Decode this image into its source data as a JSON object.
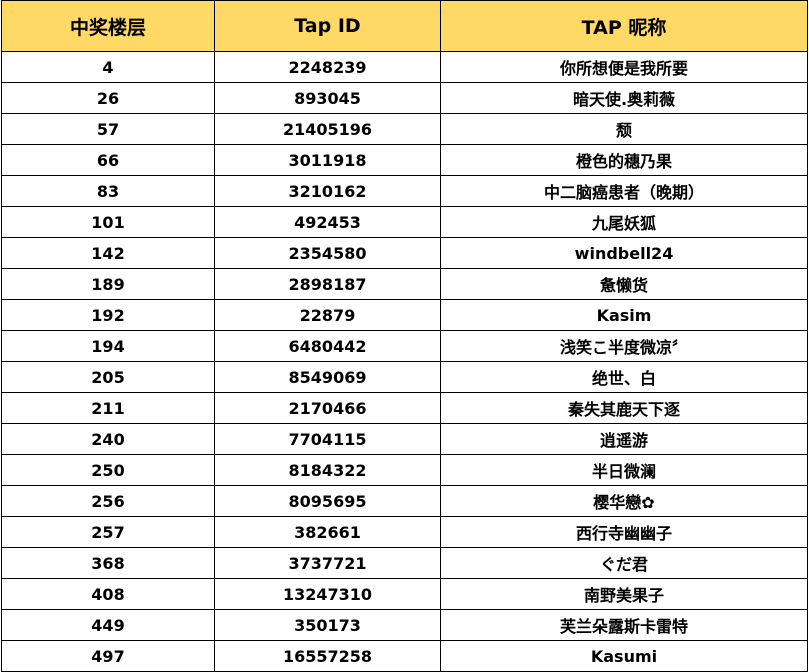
{
  "header": {
    "floor": "中奖楼层",
    "tap_id": "Tap ID",
    "nickname": "TAP 昵称"
  },
  "colors": {
    "header_bg": "#ffd966",
    "border": "#000000"
  },
  "rows": [
    {
      "floor": "4",
      "tap_id": "2248239",
      "nickname": "你所想便是我所要"
    },
    {
      "floor": "26",
      "tap_id": "893045",
      "nickname": "暗天使.奥莉薇"
    },
    {
      "floor": "57",
      "tap_id": "21405196",
      "nickname": "颓"
    },
    {
      "floor": "66",
      "tap_id": "3011918",
      "nickname": "橙色的穗乃果"
    },
    {
      "floor": "83",
      "tap_id": "3210162",
      "nickname": "中二脑癌患者（晚期）"
    },
    {
      "floor": "101",
      "tap_id": "492453",
      "nickname": "九尾妖狐"
    },
    {
      "floor": "142",
      "tap_id": "2354580",
      "nickname": "windbell24"
    },
    {
      "floor": "189",
      "tap_id": "2898187",
      "nickname": "惫懒货"
    },
    {
      "floor": "192",
      "tap_id": "22879",
      "nickname": "Kasim"
    },
    {
      "floor": "194",
      "tap_id": "6480442",
      "nickname": "浅笑こ半度微凉〞"
    },
    {
      "floor": "205",
      "tap_id": "8549069",
      "nickname": "绝世、白"
    },
    {
      "floor": "211",
      "tap_id": "2170466",
      "nickname": "秦失其鹿天下逐"
    },
    {
      "floor": "240",
      "tap_id": "7704115",
      "nickname": "逍遥游"
    },
    {
      "floor": "250",
      "tap_id": "8184322",
      "nickname": "半日微澜"
    },
    {
      "floor": "256",
      "tap_id": "8095695",
      "nickname": "樱华戀✿"
    },
    {
      "floor": "257",
      "tap_id": "382661",
      "nickname": "西行寺幽幽子"
    },
    {
      "floor": "368",
      "tap_id": "3737721",
      "nickname": "ぐだ君"
    },
    {
      "floor": "408",
      "tap_id": "13247310",
      "nickname": "南野美果子"
    },
    {
      "floor": "449",
      "tap_id": "350173",
      "nickname": "芙兰朵露斯卡雷特"
    },
    {
      "floor": "497",
      "tap_id": "16557258",
      "nickname": "Kasumi"
    }
  ]
}
